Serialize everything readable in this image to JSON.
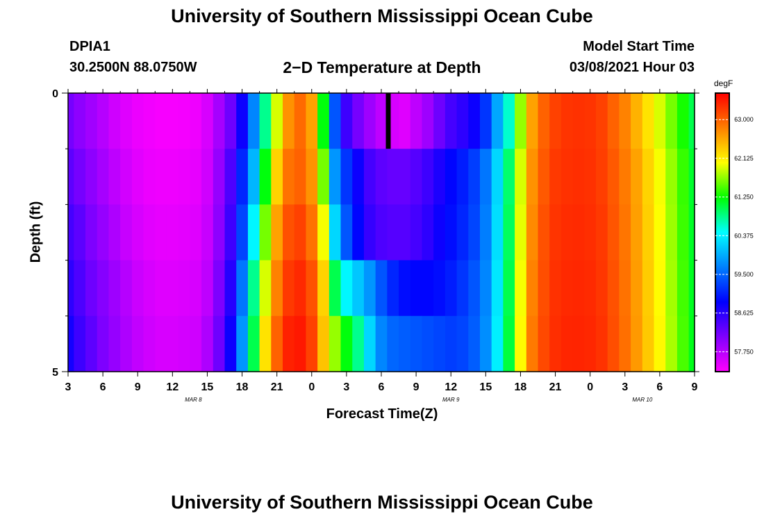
{
  "header": {
    "title_top": "University of Southern Mississippi Ocean Cube",
    "title_bottom": "University of Southern Mississippi Ocean Cube",
    "station": "DPIA1",
    "coords": "30.2500N 88.0750W",
    "plot_title": "2−D Temperature at Depth",
    "model_start_label": "Model Start Time",
    "model_start_value": "03/08/2021 Hour 03"
  },
  "chart_data": {
    "type": "heatmap",
    "title": "2−D Temperature at Depth",
    "xlabel": "Forecast Time(Z)",
    "ylabel": "Depth (ft)",
    "units": "degF",
    "x_tick_labels": [
      "3",
      "6",
      "9",
      "12",
      "15",
      "18",
      "21",
      "0",
      "3",
      "6",
      "9",
      "12",
      "15",
      "18",
      "21",
      "0",
      "3",
      "6",
      "9"
    ],
    "date_labels": [
      {
        "text": "MAR 8",
        "tick_index": 3.6
      },
      {
        "text": "MAR 9",
        "tick_index": 11.0
      },
      {
        "text": "MAR 10",
        "tick_index": 16.5
      }
    ],
    "y_tick_labels": [
      "0",
      "5"
    ],
    "ylim": [
      0,
      5
    ],
    "x_hours_range": [
      0,
      54
    ],
    "colorbar": {
      "min": 57.3,
      "max": 63.6,
      "ticks": [
        "57.750",
        "58.625",
        "59.500",
        "60.375",
        "61.250",
        "62.125",
        "63.000"
      ],
      "tick_values": [
        57.75,
        58.625,
        59.5,
        60.375,
        61.25,
        62.125,
        63.0
      ],
      "colors": [
        "#ff00ff",
        "#8000ff",
        "#0000ff",
        "#0080ff",
        "#00ffff",
        "#00ff00",
        "#ffff00",
        "#ff8000",
        "#ff0000"
      ]
    },
    "depth_layers": [
      {
        "hours": [
          0,
          1,
          2,
          3,
          4,
          5,
          6,
          7,
          8,
          9,
          10,
          11,
          12,
          13,
          14,
          15,
          16,
          17,
          18,
          19,
          20,
          21,
          22,
          23,
          24,
          25,
          26,
          27,
          28,
          29,
          30,
          31,
          32,
          33,
          34,
          35,
          36,
          37,
          38,
          39,
          40,
          41,
          42,
          43,
          44,
          45,
          46,
          47,
          48,
          49,
          50,
          51,
          52,
          53,
          54
        ],
        "temps": [
          58.15,
          58.0,
          57.88,
          57.75,
          57.6,
          57.5,
          57.42,
          57.38,
          57.35,
          57.35,
          57.36,
          57.4,
          57.55,
          57.85,
          58.2,
          58.8,
          59.7,
          60.8,
          61.9,
          62.7,
          62.95,
          62.6,
          61.2,
          59.4,
          58.5,
          58.15,
          57.9,
          57.7,
          57.55,
          57.5,
          57.7,
          57.9,
          58.2,
          58.45,
          58.6,
          58.8,
          59.2,
          59.9,
          60.6,
          61.7,
          62.6,
          63.0,
          63.2,
          63.28,
          63.3,
          63.28,
          63.2,
          63.0,
          62.8,
          62.5,
          62.2,
          61.9,
          61.6,
          61.3,
          61.0
        ]
      },
      {
        "hours": [
          0,
          1,
          2,
          3,
          4,
          5,
          6,
          7,
          8,
          9,
          10,
          11,
          12,
          13,
          14,
          15,
          16,
          17,
          18,
          19,
          20,
          21,
          22,
          23,
          24,
          25,
          26,
          27,
          28,
          29,
          30,
          31,
          32,
          33,
          34,
          35,
          36,
          37,
          38,
          39,
          40,
          41,
          42,
          43,
          44,
          45,
          46,
          47,
          48,
          49,
          50,
          51,
          52,
          53,
          54
        ],
        "temps": [
          58.3,
          58.15,
          58.0,
          57.85,
          57.7,
          57.58,
          57.48,
          57.42,
          57.4,
          57.4,
          57.42,
          57.45,
          57.6,
          57.95,
          58.4,
          59.1,
          60.0,
          61.2,
          62.3,
          62.9,
          63.0,
          62.7,
          61.6,
          59.8,
          59.2,
          58.8,
          58.45,
          58.3,
          58.25,
          58.25,
          58.35,
          58.5,
          58.7,
          58.9,
          59.05,
          59.25,
          59.6,
          60.2,
          60.9,
          61.9,
          62.7,
          63.05,
          63.25,
          63.3,
          63.32,
          63.3,
          63.22,
          63.05,
          62.85,
          62.6,
          62.3,
          62.0,
          61.7,
          61.4,
          61.1
        ]
      },
      {
        "hours": [
          0,
          1,
          2,
          3,
          4,
          5,
          6,
          7,
          8,
          9,
          10,
          11,
          12,
          13,
          14,
          15,
          16,
          17,
          18,
          19,
          20,
          21,
          22,
          23,
          24,
          25,
          26,
          27,
          28,
          29,
          30,
          31,
          32,
          33,
          34,
          35,
          36,
          37,
          38,
          39,
          40,
          41,
          42,
          43,
          44,
          45,
          46,
          47,
          48,
          49,
          50,
          51,
          52,
          53,
          54
        ],
        "temps": [
          58.45,
          58.3,
          58.1,
          57.95,
          57.8,
          57.65,
          57.55,
          57.48,
          57.45,
          57.45,
          57.47,
          57.5,
          57.65,
          58.0,
          58.5,
          59.3,
          60.4,
          61.6,
          62.6,
          63.1,
          63.2,
          62.9,
          62.0,
          60.2,
          59.4,
          58.9,
          58.55,
          58.4,
          58.35,
          58.35,
          58.45,
          58.6,
          58.8,
          58.95,
          59.1,
          59.3,
          59.65,
          60.25,
          60.95,
          61.95,
          62.75,
          63.1,
          63.28,
          63.33,
          63.34,
          63.32,
          63.25,
          63.08,
          62.88,
          62.62,
          62.32,
          62.02,
          61.72,
          61.42,
          61.12
        ]
      },
      {
        "hours": [
          0,
          1,
          2,
          3,
          4,
          5,
          6,
          7,
          8,
          9,
          10,
          11,
          12,
          13,
          14,
          15,
          16,
          17,
          18,
          19,
          20,
          21,
          22,
          23,
          24,
          25,
          26,
          27,
          28,
          29,
          30,
          31,
          32,
          33,
          34,
          35,
          36,
          37,
          38,
          39,
          40,
          41,
          42,
          43,
          44,
          45,
          46,
          47,
          48,
          49,
          50,
          51,
          52,
          53,
          54
        ],
        "temps": [
          58.6,
          58.4,
          58.2,
          58.05,
          57.9,
          57.75,
          57.62,
          57.55,
          57.5,
          57.5,
          57.52,
          57.55,
          57.7,
          58.1,
          58.65,
          59.6,
          60.8,
          61.9,
          62.8,
          63.25,
          63.35,
          63.1,
          62.3,
          61.0,
          60.4,
          60.1,
          59.8,
          59.4,
          59.1,
          58.95,
          58.9,
          58.9,
          58.95,
          59.05,
          59.2,
          59.4,
          59.7,
          60.3,
          61.0,
          62.0,
          62.8,
          63.12,
          63.3,
          63.35,
          63.36,
          63.34,
          63.27,
          63.1,
          62.9,
          62.64,
          62.34,
          62.04,
          61.74,
          61.44,
          61.14
        ]
      },
      {
        "hours": [
          0,
          1,
          2,
          3,
          4,
          5,
          6,
          7,
          8,
          9,
          10,
          11,
          12,
          13,
          14,
          15,
          16,
          17,
          18,
          19,
          20,
          21,
          22,
          23,
          24,
          25,
          26,
          27,
          28,
          29,
          30,
          31,
          32,
          33,
          34,
          35,
          36,
          37,
          38,
          39,
          40,
          41,
          42,
          43,
          44,
          45,
          46,
          47,
          48,
          49,
          50,
          51,
          52,
          53,
          54
        ],
        "temps": [
          58.75,
          58.5,
          58.3,
          58.1,
          57.95,
          57.8,
          57.68,
          57.6,
          57.55,
          57.55,
          57.57,
          57.6,
          57.8,
          58.2,
          58.8,
          59.8,
          61.0,
          62.2,
          63.0,
          63.4,
          63.45,
          63.2,
          62.4,
          61.7,
          61.2,
          60.8,
          60.2,
          59.7,
          59.5,
          59.45,
          59.4,
          59.35,
          59.3,
          59.25,
          59.3,
          59.45,
          59.75,
          60.35,
          61.05,
          62.05,
          62.85,
          63.15,
          63.32,
          63.37,
          63.38,
          63.36,
          63.29,
          63.12,
          62.92,
          62.66,
          62.36,
          62.06,
          61.76,
          61.46,
          61.16
        ]
      }
    ],
    "missing_marker": {
      "hour": 27.6,
      "depth_from": 0,
      "depth_to": 1,
      "color": "#000000"
    }
  }
}
